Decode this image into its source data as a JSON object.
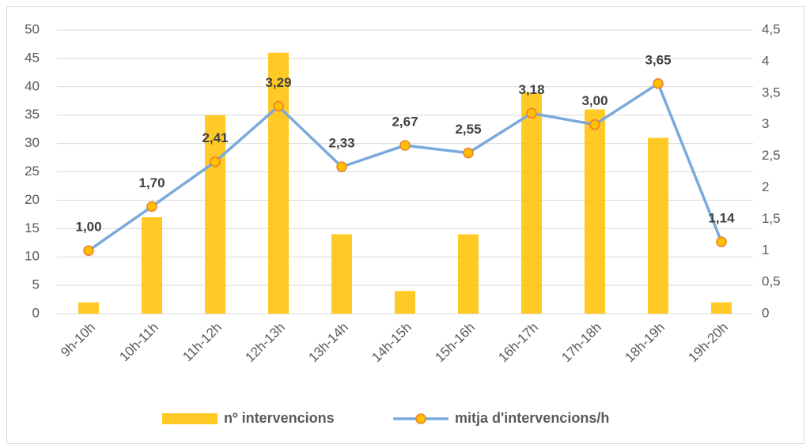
{
  "chart_data": {
    "type": "bar",
    "categories": [
      "9h-10h",
      "10h-11h",
      "11h-12h",
      "12h-13h",
      "13h-14h",
      "14h-15h",
      "15h-16h",
      "16h-17h",
      "17h-18h",
      "18h-19h",
      "19h-20h"
    ],
    "series": [
      {
        "name": "nº intervencions",
        "type": "bar",
        "color": "#ffc000",
        "values": [
          2,
          17,
          35,
          46,
          14,
          4,
          14,
          39,
          36,
          31,
          2
        ]
      },
      {
        "name": "mitja d'intervencions/h",
        "type": "line",
        "axis": "y2",
        "color": "#7aaadc",
        "marker_color": "#ffc000",
        "marker_edge": "#ed7d31",
        "values": [
          1.0,
          1.7,
          2.41,
          3.29,
          2.33,
          2.67,
          2.55,
          3.18,
          3.0,
          3.65,
          1.14
        ],
        "value_labels": [
          "1,00",
          "1,70",
          "2,41",
          "3,29",
          "2,33",
          "2,67",
          "2,55",
          "3,18",
          "3,00",
          "3,65",
          "1,14"
        ]
      }
    ],
    "ylim": [
      0,
      50
    ],
    "yticks": [
      0,
      5,
      10,
      15,
      20,
      25,
      30,
      35,
      40,
      45,
      50
    ],
    "y2lim": [
      0,
      4.5
    ],
    "y2ticks": [
      0,
      {
        "value": 0.5,
        "label": "0,5"
      },
      1,
      {
        "value": 1.5,
        "label": "1,5"
      },
      2,
      {
        "value": 2.5,
        "label": "2,5"
      },
      3,
      {
        "value": 3.5,
        "label": "3,5"
      },
      4,
      {
        "value": 4.5,
        "label": "4,5"
      }
    ],
    "grid": true,
    "legend": "bottom"
  }
}
